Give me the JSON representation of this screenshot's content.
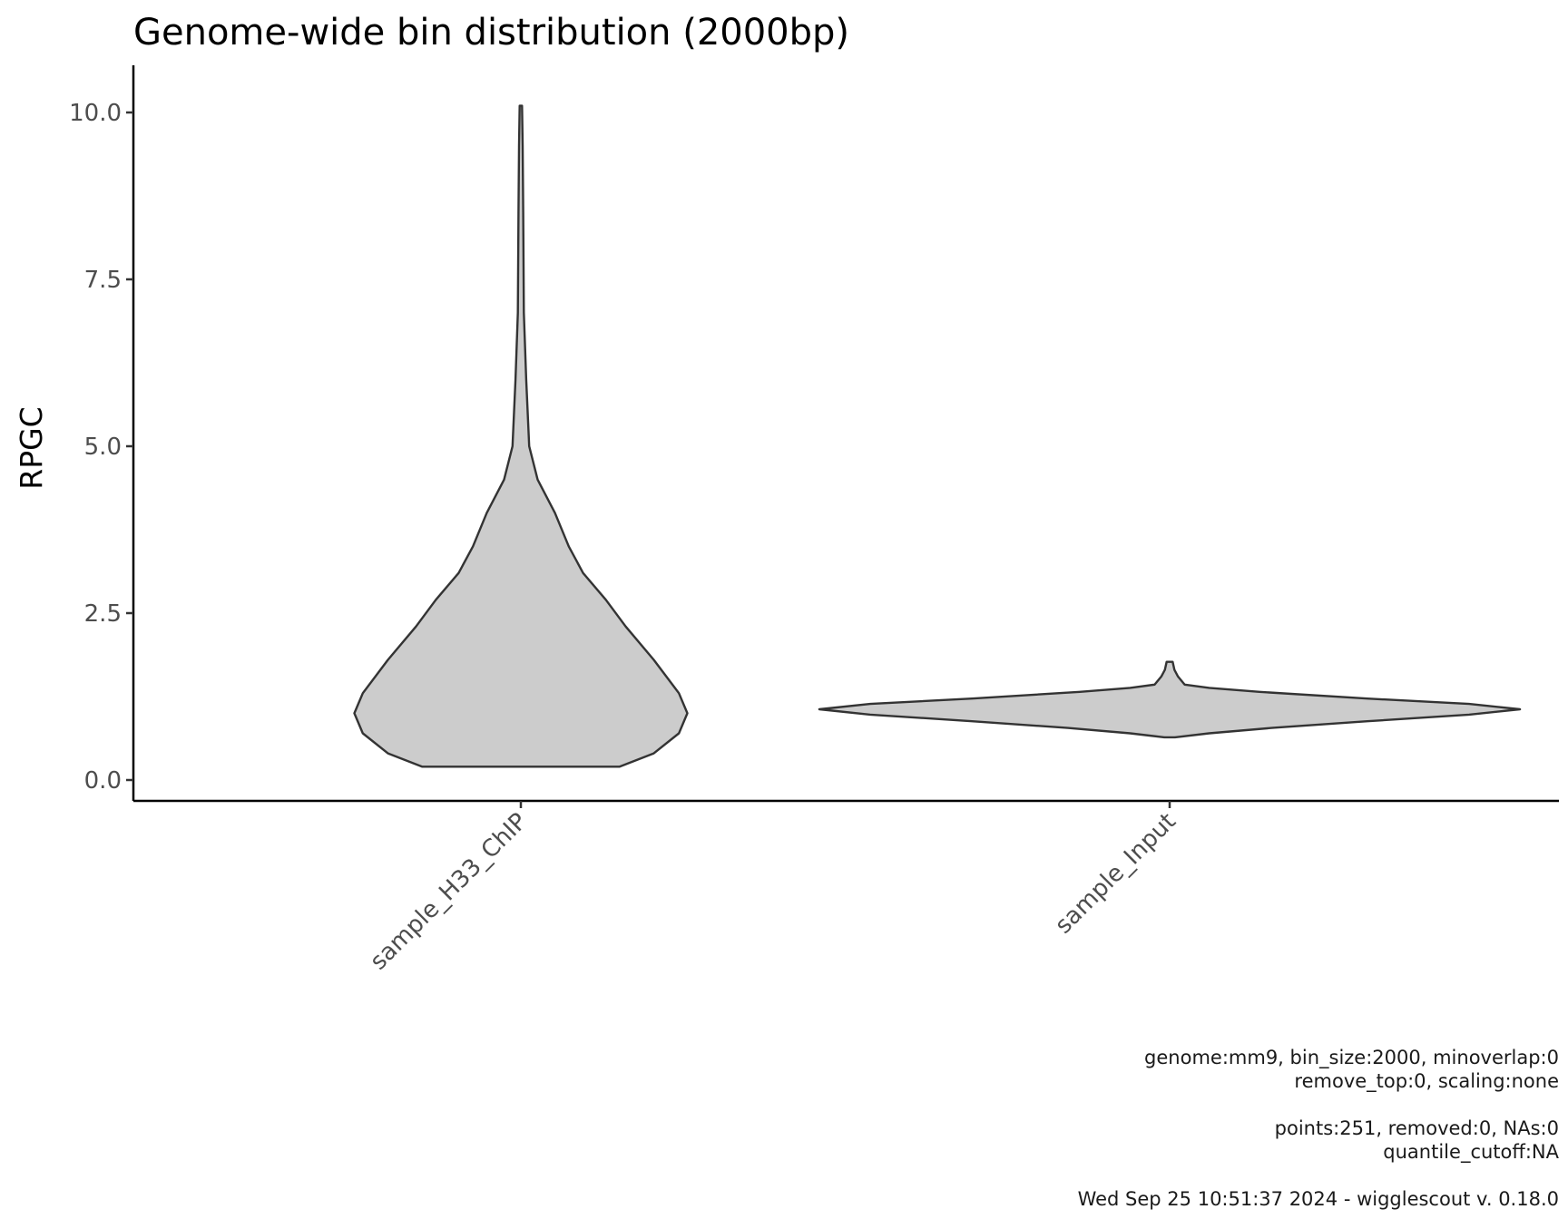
{
  "chart_data": {
    "type": "violin",
    "title": "Genome-wide bin distribution (2000bp)",
    "xlabel": "",
    "ylabel": "RPGC",
    "ylim": [
      -0.6,
      10.6
    ],
    "yticks": [
      "0.0",
      "2.5",
      "5.0",
      "7.5",
      "10.0"
    ],
    "ytick_values": [
      0,
      2.5,
      5.0,
      7.5,
      10.0
    ],
    "categories": [
      "sample_H33_ChIP",
      "sample_Input"
    ],
    "grid": false,
    "fill_color": "#cccccc",
    "stroke_color": "#333333",
    "violins": [
      {
        "category": "sample_H33_ChIP",
        "min": 0.2,
        "max": 10.1,
        "density_profile": [
          {
            "y": 0.2,
            "w": 0.165
          },
          {
            "y": 0.4,
            "w": 0.222
          },
          {
            "y": 0.7,
            "w": 0.264
          },
          {
            "y": 1.0,
            "w": 0.278
          },
          {
            "y": 1.3,
            "w": 0.264
          },
          {
            "y": 1.8,
            "w": 0.222
          },
          {
            "y": 2.3,
            "w": 0.175
          },
          {
            "y": 2.7,
            "w": 0.142
          },
          {
            "y": 3.1,
            "w": 0.104
          },
          {
            "y": 3.5,
            "w": 0.08
          },
          {
            "y": 4.0,
            "w": 0.057
          },
          {
            "y": 4.5,
            "w": 0.028
          },
          {
            "y": 5.0,
            "w": 0.014
          },
          {
            "y": 6.0,
            "w": 0.009
          },
          {
            "y": 7.0,
            "w": 0.005
          },
          {
            "y": 8.5,
            "w": 0.004
          },
          {
            "y": 9.5,
            "w": 0.003
          },
          {
            "y": 10.1,
            "w": 0.002
          }
        ]
      },
      {
        "category": "sample_Input",
        "min": 0.64,
        "max": 1.77,
        "density_profile": [
          {
            "y": 0.64,
            "w": 0.009
          },
          {
            "y": 0.7,
            "w": 0.066
          },
          {
            "y": 0.78,
            "w": 0.17
          },
          {
            "y": 0.88,
            "w": 0.33
          },
          {
            "y": 0.98,
            "w": 0.5
          },
          {
            "y": 1.06,
            "w": 0.585
          },
          {
            "y": 1.14,
            "w": 0.5
          },
          {
            "y": 1.22,
            "w": 0.33
          },
          {
            "y": 1.32,
            "w": 0.15
          },
          {
            "y": 1.38,
            "w": 0.066
          },
          {
            "y": 1.43,
            "w": 0.025
          },
          {
            "y": 1.55,
            "w": 0.014
          },
          {
            "y": 1.65,
            "w": 0.008
          },
          {
            "y": 1.77,
            "w": 0.005
          }
        ]
      }
    ],
    "caption": [
      "genome:mm9, bin_size:2000, minoverlap:0",
      "remove_top:0, scaling:none",
      "",
      "points:251, removed:0, NAs:0",
      "quantile_cutoff:NA",
      "",
      "Wed Sep 25 10:51:37 2024 - wigglescout v. 0.18.0"
    ]
  }
}
